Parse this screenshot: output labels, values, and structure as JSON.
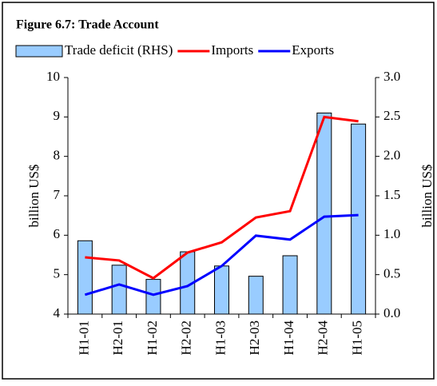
{
  "chart_data": {
    "type": "bar_line",
    "title": "Figure 6.7: Trade Account",
    "categories": [
      "H1-01",
      "H2-01",
      "H1-02",
      "H2-02",
      "H1-03",
      "H2-03",
      "H1-04",
      "H2-04",
      "H1-05"
    ],
    "series": [
      {
        "name": "Trade deficit (RHS)",
        "type": "bar",
        "axis": "y2",
        "color": "#99ccff",
        "values": [
          0.93,
          0.62,
          0.44,
          0.79,
          0.61,
          0.48,
          0.74,
          2.55,
          2.41
        ]
      },
      {
        "name": "Imports",
        "type": "line",
        "color": "#ff0000",
        "values": [
          5.44,
          5.36,
          4.91,
          5.56,
          5.82,
          6.45,
          6.61,
          9.0,
          8.89
        ]
      },
      {
        "name": "Exports",
        "type": "line",
        "color": "#0000ff",
        "values": [
          4.49,
          4.75,
          4.49,
          4.71,
          5.22,
          5.99,
          5.89,
          6.47,
          6.51
        ]
      }
    ],
    "ylabel": "billion US$",
    "y2label": "billion US$",
    "ylim": [
      4,
      10
    ],
    "yticks": [
      4,
      5,
      6,
      7,
      8,
      9,
      10
    ],
    "y2lim": [
      0,
      3
    ],
    "y2ticks": [
      {
        "value": 0,
        "label": "0.0"
      },
      0.5,
      {
        "value": 1,
        "label": "1.0"
      },
      1.5,
      {
        "value": 2,
        "label": "2.0"
      },
      2.5,
      {
        "value": 3,
        "label": "3.0"
      }
    ]
  }
}
